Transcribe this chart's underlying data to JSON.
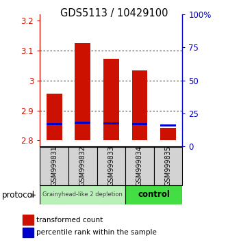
{
  "title": "GDS5113 / 10429100",
  "samples": [
    "GSM999831",
    "GSM999832",
    "GSM999833",
    "GSM999834",
    "GSM999835"
  ],
  "red_bar_bottom": 2.8,
  "red_bar_tops": [
    2.957,
    3.125,
    3.073,
    3.033,
    2.843
  ],
  "blue_bar_bottoms": [
    2.85,
    2.855,
    2.854,
    2.85,
    2.846
  ],
  "blue_bar_height": 0.007,
  "ylim_left": [
    2.78,
    3.22
  ],
  "ylim_right": [
    0,
    100
  ],
  "yticks_left": [
    2.8,
    2.9,
    3.0,
    3.1,
    3.2
  ],
  "ytick_labels_left": [
    "2.8",
    "2.9",
    "3",
    "3.1",
    "3.2"
  ],
  "yticks_right": [
    0,
    25,
    50,
    75,
    100
  ],
  "ytick_labels_right": [
    "0",
    "25",
    "50",
    "75",
    "100%"
  ],
  "grid_values": [
    2.9,
    3.0,
    3.1
  ],
  "group1_label": "Grainyhead-like 2 depletion",
  "group2_label": "control",
  "group1_indices": [
    0,
    1,
    2
  ],
  "group2_indices": [
    3,
    4
  ],
  "group1_color": "#b8f0b8",
  "group2_color": "#44dd44",
  "protocol_label": "protocol",
  "legend1": "transformed count",
  "legend2": "percentile rank within the sample",
  "red_color": "#cc1100",
  "blue_color": "#0000cc",
  "bar_width": 0.55,
  "title_fontsize": 10.5,
  "tick_fontsize": 8.5,
  "sample_fontsize": 7
}
